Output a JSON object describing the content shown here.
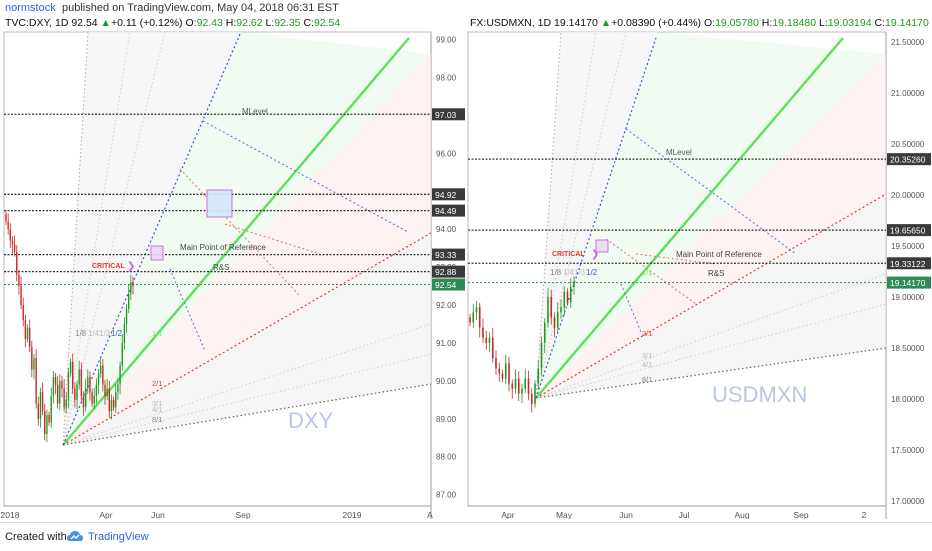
{
  "header": {
    "user": "normstock",
    "published": "published on TradingView.com, May 04, 2018 06:31 EST"
  },
  "footer": {
    "created_with": "Created with",
    "brand": "TradingView"
  },
  "colors": {
    "up": "#1e9a1e",
    "down": "#c62828",
    "green_line": "#5be15b",
    "blue_dotted": "#3f51e0",
    "red_dotted": "#e53935",
    "grey_dotted": "#888888",
    "label_box": "#3a3a3a",
    "label_green": "#2e8b57",
    "violet": "#c964d8",
    "watermark": "#b9c7e6"
  },
  "panels": [
    {
      "id": "dxy",
      "title": {
        "symbol": "TVC:DXY, 1D",
        "last": "92.54",
        "change": "+0.11 (+0.12%)",
        "o_label": "O:",
        "o": "92.43",
        "h_label": "H:",
        "h": "92.62",
        "l_label": "L:",
        "l": "92.35",
        "c_label": "C:",
        "c": "92.54"
      },
      "watermark": "DXY",
      "y_ticks": [
        "99.00",
        "98.00",
        "97.00",
        "96.00",
        "95.00",
        "94.00",
        "93.00",
        "92.00",
        "91.00",
        "90.00",
        "89.00",
        "88.00",
        "87.00"
      ],
      "x_ticks": [
        "2018",
        "Apr",
        "Jun",
        "Sep",
        "2019",
        "A"
      ],
      "price_labels": [
        {
          "text": "97.03",
          "type": "dark"
        },
        {
          "text": "94.92",
          "type": "dark"
        },
        {
          "text": "94.49",
          "type": "dark"
        },
        {
          "text": "93.33",
          "type": "dark"
        },
        {
          "text": "92.88",
          "type": "dark"
        },
        {
          "text": "92.54",
          "type": "green"
        }
      ],
      "annotations": {
        "mlevel": "MLevel",
        "main_point": "Main Point of Reference",
        "rs": "R&S",
        "critical": "CRITICAL",
        "f18": "1/8",
        "f14": "1/4",
        "f13": "1/3",
        "f12": "1/2",
        "r11": "1/1",
        "r21": "2/1",
        "r31": "3/1",
        "r41": "4/1",
        "r81": "8/1"
      },
      "chart_data": {
        "type": "candlestick",
        "title": "TVC:DXY, 1D",
        "ylim": [
          86.7,
          99.2
        ],
        "y_scale": "linear",
        "x_ticks": [
          "2018",
          "Apr",
          "Jun",
          "Sep",
          "2019",
          "A"
        ],
        "close_series": [
          94.2,
          94.0,
          93.7,
          93.6,
          93.4,
          92.8,
          92.5,
          92.0,
          91.6,
          91.1,
          91.4,
          90.9,
          90.3,
          90.6,
          89.4,
          89.0,
          89.7,
          89.2,
          88.6,
          89.1,
          88.9,
          89.6,
          90.1,
          89.9,
          89.4,
          90.0,
          89.8,
          89.3,
          89.5,
          90.2,
          90.5,
          89.8,
          89.5,
          89.9,
          90.3,
          89.6,
          89.3,
          89.8,
          90.1,
          89.7,
          89.4,
          89.6,
          89.9,
          90.2,
          90.4,
          89.9,
          89.6,
          89.8,
          89.2,
          89.5,
          89.3,
          89.7,
          89.9,
          90.4,
          91.0,
          91.5,
          91.9,
          92.3,
          92.6,
          92.5
        ],
        "levels": [
          97.03,
          94.92,
          94.49,
          93.33,
          92.88,
          92.54
        ],
        "last": 92.54
      }
    },
    {
      "id": "usdmxn",
      "title": {
        "symbol": "FX:USDMXN, 1D",
        "last": "19.14170",
        "change": "+0.08390 (+0.44%)",
        "o_label": "O:",
        "o": "19.05780",
        "h_label": "H:",
        "h": "19.18480",
        "l_label": "L:",
        "l": "19.03194",
        "c_label": "C:",
        "c": "19.14170"
      },
      "watermark": "USDMXN",
      "y_ticks": [
        "21.50000",
        "21.00000",
        "20.50000",
        "20.00000",
        "19.50000",
        "19.00000",
        "18.50000",
        "18.00000",
        "17.50000",
        "17.00000"
      ],
      "x_ticks": [
        "Apr",
        "May",
        "Jun",
        "Jul",
        "Aug",
        "Sep",
        "2"
      ],
      "price_labels": [
        {
          "text": "20.35260",
          "type": "dark"
        },
        {
          "text": "19.65650",
          "type": "dark"
        },
        {
          "text": "19.33122",
          "type": "dark"
        },
        {
          "text": "19.14170",
          "type": "green"
        }
      ],
      "annotations": {
        "mlevel": "MLevel",
        "main_point": "Main Point of Reference",
        "rs": "R&S",
        "critical": "CRITICAL",
        "f18": "1/8",
        "f14": "1/4",
        "f13": "1/3",
        "f12": "1/2",
        "r11": "1/1",
        "r21": "2/1",
        "r31": "3/1",
        "r41": "4/1",
        "r81": "8/1"
      },
      "chart_data": {
        "type": "candlestick",
        "title": "FX:USDMXN, 1D",
        "ylim": [
          16.95,
          21.6
        ],
        "y_scale": "linear",
        "x_ticks": [
          "Apr",
          "May",
          "Jun",
          "Jul",
          "Aug",
          "Sep",
          "2"
        ],
        "close_series": [
          18.75,
          18.85,
          18.9,
          18.7,
          18.6,
          18.55,
          18.6,
          18.4,
          18.3,
          18.25,
          18.2,
          18.35,
          18.15,
          18.1,
          18.2,
          18.05,
          18.1,
          18.2,
          18.05,
          17.95,
          18.15,
          18.3,
          18.55,
          18.75,
          19.0,
          18.8,
          18.7,
          18.85,
          18.9,
          19.05,
          18.95,
          19.1,
          19.14
        ],
        "levels": [
          20.3526,
          19.6565,
          19.33122,
          19.1417
        ],
        "last": 19.1417
      }
    }
  ]
}
